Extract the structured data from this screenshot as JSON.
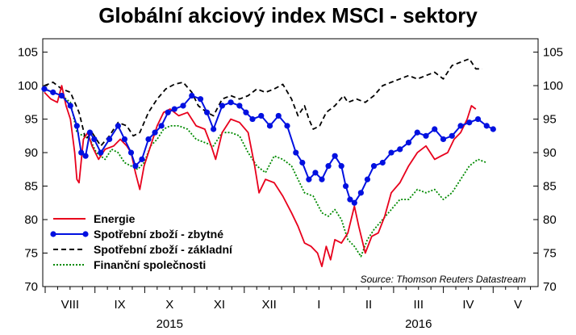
{
  "chart_data": {
    "type": "line",
    "title": "Globální akciový index MSCI - sektory",
    "source": "Source: Thomson Reuters Datastream",
    "ylim": [
      70,
      107
    ],
    "yticks": [
      70,
      75,
      80,
      85,
      90,
      95,
      100,
      105
    ],
    "y_axis_both_sides": true,
    "grid": false,
    "legend_position": "bottom-left",
    "x_months": [
      "VIII",
      "IX",
      "X",
      "XI",
      "XII",
      "I",
      "II",
      "III",
      "IV",
      "V"
    ],
    "x_years": [
      {
        "label": "2015",
        "month_index": 2.5
      },
      {
        "label": "2016",
        "month_index": 7.5
      }
    ],
    "x_range_months": [
      0,
      9.1
    ],
    "series": [
      {
        "name": "Energie",
        "color": "#e8001c",
        "style": "solid",
        "markers": false,
        "points": [
          [
            0,
            99
          ],
          [
            0.15,
            98
          ],
          [
            0.3,
            97.5
          ],
          [
            0.4,
            100
          ],
          [
            0.5,
            97
          ],
          [
            0.6,
            95
          ],
          [
            0.7,
            90
          ],
          [
            0.75,
            86
          ],
          [
            0.8,
            85.5
          ],
          [
            0.9,
            92
          ],
          [
            1.0,
            93
          ],
          [
            1.1,
            91
          ],
          [
            1.25,
            89
          ],
          [
            1.4,
            90.5
          ],
          [
            1.6,
            91
          ],
          [
            1.75,
            92
          ],
          [
            1.9,
            91
          ],
          [
            2.0,
            90
          ],
          [
            2.1,
            87
          ],
          [
            2.2,
            84.5
          ],
          [
            2.3,
            88
          ],
          [
            2.45,
            91
          ],
          [
            2.6,
            94
          ],
          [
            2.75,
            96
          ],
          [
            2.9,
            96.5
          ],
          [
            3.1,
            95.5
          ],
          [
            3.3,
            96
          ],
          [
            3.5,
            94
          ],
          [
            3.7,
            93.5
          ],
          [
            3.85,
            91
          ],
          [
            3.95,
            89
          ],
          [
            4.1,
            93
          ],
          [
            4.3,
            95
          ],
          [
            4.5,
            94.5
          ],
          [
            4.7,
            93
          ],
          [
            4.85,
            88
          ],
          [
            4.95,
            84
          ],
          [
            5.1,
            86
          ],
          [
            5.3,
            85.5
          ],
          [
            5.5,
            83.5
          ],
          [
            5.7,
            81
          ],
          [
            5.85,
            79
          ],
          [
            6.0,
            76.5
          ],
          [
            6.15,
            76
          ],
          [
            6.3,
            75
          ],
          [
            6.4,
            73
          ],
          [
            6.5,
            76
          ],
          [
            6.6,
            74
          ],
          [
            6.7,
            77
          ],
          [
            6.85,
            76.5
          ],
          [
            7.0,
            78
          ],
          [
            7.15,
            82
          ],
          [
            7.25,
            79
          ],
          [
            7.4,
            75
          ],
          [
            7.55,
            77.5
          ],
          [
            7.7,
            78
          ],
          [
            7.85,
            80.5
          ],
          [
            8.0,
            84
          ],
          [
            8.2,
            85.5
          ],
          [
            8.4,
            88
          ],
          [
            8.6,
            90
          ],
          [
            8.8,
            91
          ],
          [
            9.0,
            89
          ],
          [
            9.15,
            89.5
          ],
          [
            9.3,
            90
          ],
          [
            9.45,
            92
          ],
          [
            9.6,
            93
          ],
          [
            9.75,
            95
          ],
          [
            9.85,
            97
          ],
          [
            9.95,
            96.5
          ]
        ]
      },
      {
        "name": "Spotřební zboží - zbytné",
        "color": "#0010e0",
        "style": "solid",
        "markers": true,
        "points": [
          [
            0,
            99.5
          ],
          [
            0.2,
            99
          ],
          [
            0.4,
            98.5
          ],
          [
            0.6,
            97
          ],
          [
            0.75,
            94
          ],
          [
            0.85,
            90
          ],
          [
            0.95,
            89.5
          ],
          [
            1.05,
            93
          ],
          [
            1.15,
            92
          ],
          [
            1.3,
            90
          ],
          [
            1.5,
            92
          ],
          [
            1.7,
            94
          ],
          [
            1.85,
            92
          ],
          [
            2.0,
            90
          ],
          [
            2.1,
            88
          ],
          [
            2.25,
            89
          ],
          [
            2.4,
            92
          ],
          [
            2.55,
            93
          ],
          [
            2.7,
            94
          ],
          [
            2.85,
            96
          ],
          [
            3.0,
            96.5
          ],
          [
            3.2,
            97
          ],
          [
            3.4,
            98.5
          ],
          [
            3.6,
            98
          ],
          [
            3.75,
            96
          ],
          [
            3.9,
            93.5
          ],
          [
            4.1,
            97
          ],
          [
            4.3,
            97.5
          ],
          [
            4.5,
            97
          ],
          [
            4.65,
            96
          ],
          [
            4.8,
            95
          ],
          [
            5.0,
            95.5
          ],
          [
            5.2,
            94
          ],
          [
            5.4,
            95.5
          ],
          [
            5.6,
            94
          ],
          [
            5.8,
            90
          ],
          [
            5.95,
            88.5
          ],
          [
            6.1,
            86
          ],
          [
            6.25,
            87
          ],
          [
            6.4,
            86
          ],
          [
            6.55,
            88
          ],
          [
            6.7,
            89.5
          ],
          [
            6.85,
            88
          ],
          [
            6.95,
            85
          ],
          [
            7.05,
            83
          ],
          [
            7.15,
            82.5
          ],
          [
            7.3,
            84
          ],
          [
            7.45,
            86
          ],
          [
            7.6,
            88
          ],
          [
            7.8,
            88.5
          ],
          [
            8.0,
            90
          ],
          [
            8.2,
            90.5
          ],
          [
            8.4,
            91.5
          ],
          [
            8.6,
            93
          ],
          [
            8.8,
            92.5
          ],
          [
            9.0,
            93.5
          ],
          [
            9.2,
            92
          ],
          [
            9.4,
            92.5
          ],
          [
            9.6,
            94
          ],
          [
            9.8,
            94.5
          ],
          [
            10.0,
            95
          ],
          [
            10.2,
            94
          ],
          [
            10.35,
            93.5
          ]
        ]
      },
      {
        "name": "Spotřební zboží - základní",
        "color": "#000000",
        "style": "dashed",
        "markers": false,
        "points": [
          [
            0,
            100
          ],
          [
            0.2,
            100.5
          ],
          [
            0.4,
            99.5
          ],
          [
            0.6,
            99
          ],
          [
            0.8,
            96
          ],
          [
            0.95,
            92
          ],
          [
            1.1,
            93
          ],
          [
            1.3,
            91
          ],
          [
            1.5,
            92.5
          ],
          [
            1.7,
            94.5
          ],
          [
            1.9,
            94
          ],
          [
            2.05,
            92.5
          ],
          [
            2.2,
            93
          ],
          [
            2.4,
            96
          ],
          [
            2.6,
            98
          ],
          [
            2.8,
            99.5
          ],
          [
            3.0,
            100.2
          ],
          [
            3.2,
            100.5
          ],
          [
            3.4,
            99
          ],
          [
            3.55,
            97
          ],
          [
            3.75,
            96
          ],
          [
            3.9,
            95.5
          ],
          [
            4.1,
            98
          ],
          [
            4.3,
            98.5
          ],
          [
            4.5,
            98
          ],
          [
            4.7,
            98.5
          ],
          [
            4.9,
            99.5
          ],
          [
            5.1,
            99
          ],
          [
            5.3,
            99.5
          ],
          [
            5.5,
            100.2
          ],
          [
            5.7,
            98
          ],
          [
            5.85,
            95.5
          ],
          [
            6.0,
            97
          ],
          [
            6.1,
            95
          ],
          [
            6.2,
            93.5
          ],
          [
            6.35,
            94
          ],
          [
            6.5,
            96
          ],
          [
            6.7,
            97
          ],
          [
            6.9,
            98.5
          ],
          [
            7.0,
            97.5
          ],
          [
            7.2,
            98
          ],
          [
            7.4,
            97.5
          ],
          [
            7.6,
            98.5
          ],
          [
            7.8,
            100
          ],
          [
            8.0,
            100.5
          ],
          [
            8.2,
            101
          ],
          [
            8.4,
            101.5
          ],
          [
            8.6,
            101
          ],
          [
            8.8,
            101.5
          ],
          [
            9.0,
            102
          ],
          [
            9.2,
            101
          ],
          [
            9.4,
            103
          ],
          [
            9.6,
            103.5
          ],
          [
            9.8,
            104
          ],
          [
            9.95,
            102.5
          ],
          [
            10.1,
            102.5
          ]
        ]
      },
      {
        "name": "Finanční společnosti",
        "color": "#008a00",
        "style": "dotted",
        "markers": false,
        "points": [
          [
            0,
            99.5
          ],
          [
            0.2,
            99
          ],
          [
            0.4,
            98.5
          ],
          [
            0.6,
            97.5
          ],
          [
            0.75,
            93
          ],
          [
            0.9,
            92.5
          ],
          [
            1.05,
            92
          ],
          [
            1.2,
            90
          ],
          [
            1.4,
            89
          ],
          [
            1.55,
            90.5
          ],
          [
            1.7,
            90
          ],
          [
            1.85,
            88.5
          ],
          [
            2.0,
            88
          ],
          [
            2.15,
            87.5
          ],
          [
            2.3,
            88.5
          ],
          [
            2.45,
            91
          ],
          [
            2.6,
            92
          ],
          [
            2.75,
            93.5
          ],
          [
            2.9,
            94
          ],
          [
            3.1,
            94
          ],
          [
            3.3,
            93.5
          ],
          [
            3.5,
            92
          ],
          [
            3.7,
            91.5
          ],
          [
            3.9,
            91
          ],
          [
            4.1,
            93
          ],
          [
            4.3,
            93
          ],
          [
            4.5,
            92.5
          ],
          [
            4.7,
            90
          ],
          [
            4.9,
            88
          ],
          [
            5.1,
            87
          ],
          [
            5.3,
            89.5
          ],
          [
            5.5,
            89
          ],
          [
            5.7,
            88
          ],
          [
            5.85,
            86
          ],
          [
            6.0,
            84
          ],
          [
            6.2,
            83.5
          ],
          [
            6.4,
            81
          ],
          [
            6.55,
            80.5
          ],
          [
            6.7,
            81.5
          ],
          [
            6.85,
            80
          ],
          [
            7.0,
            77
          ],
          [
            7.15,
            76
          ],
          [
            7.3,
            74.5
          ],
          [
            7.45,
            77
          ],
          [
            7.6,
            78.5
          ],
          [
            7.8,
            80
          ],
          [
            8.0,
            81.5
          ],
          [
            8.2,
            83
          ],
          [
            8.4,
            83
          ],
          [
            8.6,
            84.5
          ],
          [
            8.8,
            84
          ],
          [
            9.0,
            84.5
          ],
          [
            9.2,
            83
          ],
          [
            9.4,
            84
          ],
          [
            9.6,
            86
          ],
          [
            9.8,
            88
          ],
          [
            10.0,
            89
          ],
          [
            10.2,
            88.5
          ]
        ]
      }
    ]
  }
}
